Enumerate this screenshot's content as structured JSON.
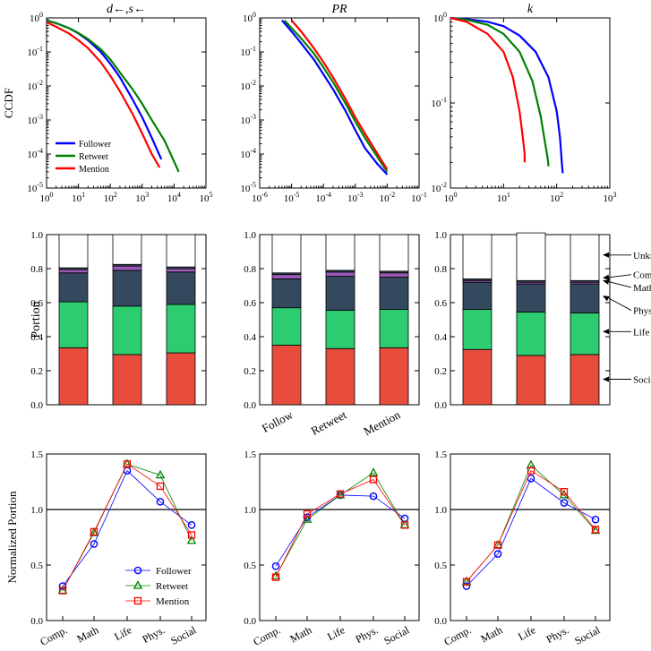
{
  "chart_data": [
    {
      "type": "line",
      "scale": "loglog",
      "title": "d←,s←",
      "ylabel": "CCDF",
      "xlim": [
        1,
        100000
      ],
      "ylim": [
        1e-05,
        1
      ],
      "xticks": [
        "10^0",
        "10^1",
        "10^2",
        "10^3",
        "10^4",
        "10^5"
      ],
      "yticks": [
        "10^0",
        "10^-1",
        "10^-2",
        "10^-3",
        "10^-4",
        "10^-5"
      ],
      "legend": [
        "Follower",
        "Retweet",
        "Mention"
      ],
      "series": [
        {
          "name": "Follower",
          "color": "#0000ff",
          "x": [
            1,
            2,
            5,
            10,
            20,
            50,
            100,
            200,
            500,
            1000,
            2000,
            4000
          ],
          "y": [
            0.85,
            0.7,
            0.5,
            0.35,
            0.22,
            0.1,
            0.045,
            0.018,
            0.004,
            0.0012,
            0.0003,
            7e-05
          ]
        },
        {
          "name": "Retweet",
          "color": "#008000",
          "x": [
            1,
            2,
            5,
            10,
            20,
            50,
            100,
            200,
            500,
            1000,
            2000,
            5000,
            10000,
            14000
          ],
          "y": [
            0.85,
            0.7,
            0.5,
            0.36,
            0.24,
            0.12,
            0.06,
            0.025,
            0.008,
            0.003,
            0.001,
            0.00025,
            6e-05,
            3e-05
          ]
        },
        {
          "name": "Mention",
          "color": "#ff0000",
          "x": [
            1,
            2,
            5,
            10,
            20,
            50,
            100,
            200,
            500,
            1000,
            2000,
            3500
          ],
          "y": [
            0.75,
            0.55,
            0.35,
            0.22,
            0.13,
            0.05,
            0.02,
            0.007,
            0.0015,
            0.0004,
            0.0001,
            4e-05
          ]
        }
      ]
    },
    {
      "type": "line",
      "scale": "loglog",
      "title": "PR",
      "xlim": [
        1e-06,
        0.1
      ],
      "ylim": [
        1e-05,
        1
      ],
      "xticks": [
        "10^-6",
        "10^-5",
        "10^-4",
        "10^-3",
        "10^-2",
        "10^-1"
      ],
      "yticks": [
        "10^0",
        "10^-1",
        "10^-2",
        "10^-3",
        "10^-4",
        "10^-5"
      ],
      "series": [
        {
          "name": "Follower",
          "color": "#0000ff",
          "x": [
            5e-06,
            1e-05,
            2e-05,
            5e-05,
            0.0001,
            0.0002,
            0.0005,
            0.001,
            0.002,
            0.005,
            0.01
          ],
          "y": [
            0.85,
            0.4,
            0.18,
            0.06,
            0.022,
            0.008,
            0.0018,
            0.0005,
            0.00015,
            5e-05,
            2.5e-05
          ]
        },
        {
          "name": "Retweet",
          "color": "#008000",
          "x": [
            6e-06,
            1e-05,
            2e-05,
            5e-05,
            0.0001,
            0.0002,
            0.0005,
            0.001,
            0.002,
            0.005,
            0.01
          ],
          "y": [
            0.85,
            0.5,
            0.25,
            0.09,
            0.035,
            0.013,
            0.003,
            0.0009,
            0.0003,
            8e-05,
            3e-05
          ]
        },
        {
          "name": "Mention",
          "color": "#ff0000",
          "x": [
            1e-05,
            2e-05,
            5e-05,
            0.0001,
            0.0002,
            0.0005,
            0.001,
            0.002,
            0.005,
            0.01
          ],
          "y": [
            0.85,
            0.4,
            0.13,
            0.05,
            0.018,
            0.004,
            0.0012,
            0.0004,
            0.0001,
            3.5e-05
          ]
        }
      ]
    },
    {
      "type": "line",
      "scale": "loglog",
      "title": "k",
      "xlim": [
        1,
        1000
      ],
      "ylim": [
        0.01,
        1
      ],
      "xticks": [
        "10^0",
        "10^1",
        "10^2",
        "10^3"
      ],
      "yticks": [
        "10^0",
        "10^-1",
        "10^-2"
      ],
      "series": [
        {
          "name": "Follower",
          "color": "#0000ff",
          "x": [
            1,
            2,
            5,
            10,
            20,
            40,
            70,
            100,
            115,
            125,
            130
          ],
          "y": [
            1,
            0.97,
            0.9,
            0.8,
            0.62,
            0.4,
            0.2,
            0.08,
            0.04,
            0.02,
            0.015
          ]
        },
        {
          "name": "Retweet",
          "color": "#008000",
          "x": [
            1,
            2,
            5,
            10,
            20,
            35,
            50,
            60,
            68,
            70
          ],
          "y": [
            1,
            0.95,
            0.83,
            0.65,
            0.4,
            0.18,
            0.07,
            0.035,
            0.022,
            0.018
          ]
        },
        {
          "name": "Mention",
          "color": "#ff0000",
          "x": [
            1,
            2,
            5,
            10,
            15,
            20,
            23,
            25,
            25
          ],
          "y": [
            1,
            0.9,
            0.65,
            0.4,
            0.2,
            0.08,
            0.04,
            0.025,
            0.02
          ]
        }
      ]
    },
    {
      "type": "bar",
      "stacked": true,
      "ylabel": "Portion",
      "ylim": [
        0,
        1
      ],
      "yticks": [
        "0.0",
        "0.2",
        "0.4",
        "0.6",
        "0.8",
        "1.0"
      ],
      "categories": [
        "Follow",
        "Retweet",
        "Mention"
      ],
      "stack_order": [
        "Social",
        "Life",
        "Physical",
        "Math",
        "Computer",
        "Unknown"
      ],
      "colors": {
        "Social": "#e74c3c",
        "Life": "#2ecc71",
        "Physical": "#34495e",
        "Math": "#9b59b6",
        "Computer": "#34495e",
        "Unknown": "#ffffff"
      },
      "series": [
        {
          "name": "Social",
          "values": [
            0.335,
            0.295,
            0.305
          ]
        },
        {
          "name": "Life",
          "values": [
            0.27,
            0.285,
            0.285
          ]
        },
        {
          "name": "Physical",
          "values": [
            0.17,
            0.21,
            0.19
          ]
        },
        {
          "name": "Math",
          "values": [
            0.02,
            0.025,
            0.02
          ]
        },
        {
          "name": "Computer",
          "values": [
            0.01,
            0.01,
            0.01
          ]
        },
        {
          "name": "Unknown",
          "values": [
            0.195,
            0.175,
            0.19
          ]
        }
      ]
    },
    {
      "type": "bar",
      "stacked": true,
      "ylim": [
        0,
        1
      ],
      "yticks": [
        "0.0",
        "0.2",
        "0.4",
        "0.6",
        "0.8",
        "1.0"
      ],
      "categories": [
        "Follow",
        "Retweet",
        "Mention"
      ],
      "xticks_shown": [
        "Follow",
        "Retweet",
        "Mention"
      ],
      "series": [
        {
          "name": "Social",
          "values": [
            0.35,
            0.33,
            0.335
          ]
        },
        {
          "name": "Life",
          "values": [
            0.22,
            0.225,
            0.225
          ]
        },
        {
          "name": "Physical",
          "values": [
            0.17,
            0.2,
            0.19
          ]
        },
        {
          "name": "Math",
          "values": [
            0.025,
            0.025,
            0.025
          ]
        },
        {
          "name": "Computer",
          "values": [
            0.01,
            0.01,
            0.01
          ]
        },
        {
          "name": "Unknown",
          "values": [
            0.225,
            0.21,
            0.215
          ]
        }
      ]
    },
    {
      "type": "bar",
      "stacked": true,
      "ylim": [
        0,
        1
      ],
      "yticks": [
        "0.0",
        "0.2",
        "0.4",
        "0.6",
        "0.8",
        "1.0"
      ],
      "categories": [
        "Follow",
        "Retweet",
        "Mention"
      ],
      "annotations": [
        "Unknown",
        "Computer",
        "Math",
        "Physical",
        "Life",
        "Social"
      ],
      "series": [
        {
          "name": "Social",
          "values": [
            0.325,
            0.29,
            0.295
          ]
        },
        {
          "name": "Life",
          "values": [
            0.235,
            0.255,
            0.245
          ]
        },
        {
          "name": "Physical",
          "values": [
            0.16,
            0.165,
            0.17
          ]
        },
        {
          "name": "Math",
          "values": [
            0.01,
            0.01,
            0.01
          ]
        },
        {
          "name": "Computer",
          "values": [
            0.01,
            0.01,
            0.01
          ]
        },
        {
          "name": "Unknown",
          "values": [
            0.26,
            0.28,
            0.27
          ]
        }
      ]
    },
    {
      "type": "line",
      "markers": true,
      "ylabel": "Normalized Portion",
      "ylim": [
        0,
        1.5
      ],
      "yticks": [
        "0.0",
        "0.5",
        "1.0",
        "1.5"
      ],
      "categories": [
        "Comp.",
        "Math",
        "Life",
        "Phys.",
        "Social"
      ],
      "reference_line": 1.0,
      "legend": [
        "Follower",
        "Retweet",
        "Mention"
      ],
      "series": [
        {
          "name": "Follower",
          "color": "#0000ff",
          "marker": "circle",
          "values": [
            0.31,
            0.69,
            1.35,
            1.07,
            0.86
          ]
        },
        {
          "name": "Retweet",
          "color": "#008000",
          "marker": "triangle",
          "values": [
            0.27,
            0.79,
            1.41,
            1.31,
            0.72
          ]
        },
        {
          "name": "Mention",
          "color": "#ff0000",
          "marker": "square",
          "values": [
            0.27,
            0.8,
            1.41,
            1.21,
            0.77
          ]
        }
      ]
    },
    {
      "type": "line",
      "markers": true,
      "ylim": [
        0,
        1.5
      ],
      "yticks": [
        "0.0",
        "0.5",
        "1.0",
        "1.5"
      ],
      "categories": [
        "Comp.",
        "Math",
        "Life",
        "Phys.",
        "Social"
      ],
      "reference_line": 1.0,
      "series": [
        {
          "name": "Follower",
          "color": "#0000ff",
          "marker": "circle",
          "values": [
            0.49,
            0.93,
            1.13,
            1.12,
            0.92
          ]
        },
        {
          "name": "Retweet",
          "color": "#008000",
          "marker": "triangle",
          "values": [
            0.4,
            0.91,
            1.13,
            1.33,
            0.86
          ]
        },
        {
          "name": "Mention",
          "color": "#ff0000",
          "marker": "square",
          "values": [
            0.39,
            0.96,
            1.14,
            1.27,
            0.86
          ]
        }
      ]
    },
    {
      "type": "line",
      "markers": true,
      "ylim": [
        0,
        1.5
      ],
      "yticks": [
        "0.0",
        "0.5",
        "1.0",
        "1.5"
      ],
      "categories": [
        "Comp.",
        "Math",
        "Life",
        "Phys.",
        "Social"
      ],
      "reference_line": 1.0,
      "series": [
        {
          "name": "Follower",
          "color": "#0000ff",
          "marker": "circle",
          "values": [
            0.31,
            0.6,
            1.28,
            1.06,
            0.91
          ]
        },
        {
          "name": "Retweet",
          "color": "#008000",
          "marker": "triangle",
          "values": [
            0.35,
            0.68,
            1.4,
            1.13,
            0.81
          ]
        },
        {
          "name": "Mention",
          "color": "#ff0000",
          "marker": "square",
          "values": [
            0.35,
            0.68,
            1.35,
            1.16,
            0.82
          ]
        }
      ]
    }
  ]
}
